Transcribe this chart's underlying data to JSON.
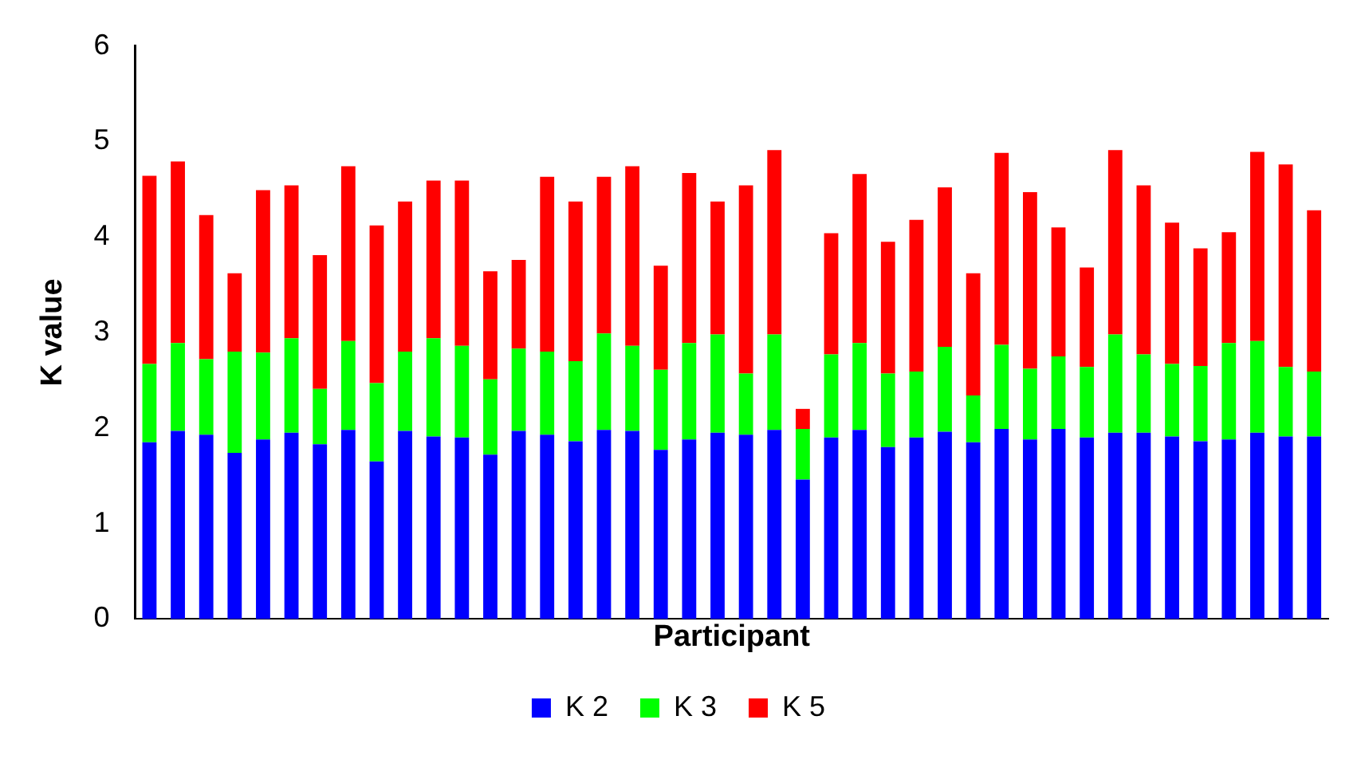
{
  "chart_data": {
    "type": "bar",
    "stacked": true,
    "xlabel": "Participant",
    "ylabel": "K value",
    "categories": [
      null,
      null,
      null,
      null,
      null,
      null,
      null,
      null,
      null,
      null,
      null,
      null,
      null,
      null,
      null,
      null,
      null,
      null,
      null,
      null,
      null,
      null,
      null,
      null,
      null,
      null,
      null,
      null,
      null,
      null,
      null,
      null,
      null,
      null,
      null,
      null,
      null,
      null,
      null,
      null,
      null,
      null
    ],
    "ylim": [
      0,
      6
    ],
    "yticks": [
      0,
      1,
      2,
      3,
      4,
      5,
      6
    ],
    "grid": false,
    "legend": "bottom",
    "series": [
      {
        "name": "K 2",
        "color": "#0000ff",
        "values": [
          1.85,
          1.97,
          1.93,
          1.74,
          1.88,
          1.95,
          1.83,
          1.98,
          1.65,
          1.97,
          1.91,
          1.9,
          1.72,
          1.97,
          1.93,
          1.86,
          1.98,
          1.97,
          1.77,
          1.88,
          1.95,
          1.93,
          1.98,
          1.46,
          1.9,
          1.98,
          1.8,
          1.9,
          1.96,
          1.85,
          1.99,
          1.88,
          1.99,
          1.9,
          1.95,
          1.95,
          1.91,
          1.86,
          1.88,
          1.95,
          1.91,
          1.91
        ]
      },
      {
        "name": "K 3",
        "color": "#00ff00",
        "values": [
          0.82,
          0.92,
          0.79,
          1.06,
          0.91,
          0.99,
          0.58,
          0.93,
          0.82,
          0.83,
          1.03,
          0.96,
          0.79,
          0.86,
          0.87,
          0.84,
          1.01,
          0.89,
          0.84,
          1.01,
          1.03,
          0.64,
          1.0,
          0.53,
          0.87,
          0.91,
          0.77,
          0.69,
          0.89,
          0.49,
          0.88,
          0.74,
          0.76,
          0.74,
          1.03,
          0.82,
          0.76,
          0.79,
          1.01,
          0.96,
          0.73,
          0.68
        ]
      },
      {
        "name": "K 5",
        "color": "#ff0000",
        "values": [
          1.97,
          1.9,
          1.51,
          0.82,
          1.7,
          1.6,
          1.4,
          1.83,
          1.65,
          1.57,
          1.65,
          1.73,
          1.13,
          0.93,
          1.83,
          1.67,
          1.64,
          1.88,
          1.09,
          1.78,
          1.39,
          1.97,
          1.93,
          0.21,
          1.27,
          1.77,
          1.38,
          1.59,
          1.67,
          1.28,
          2.01,
          1.85,
          1.35,
          1.04,
          1.93,
          1.77,
          1.48,
          1.23,
          1.16,
          1.98,
          2.12,
          1.69
        ]
      }
    ]
  }
}
